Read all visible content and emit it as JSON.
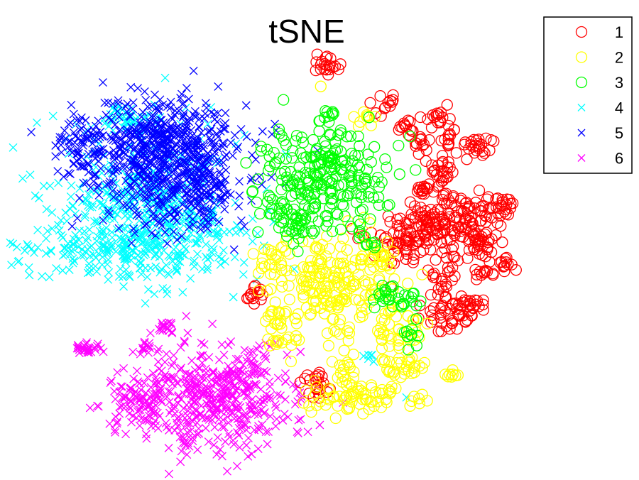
{
  "chart_data": {
    "type": "scatter",
    "title": "tSNE",
    "xlabel": "",
    "ylabel": "",
    "grid": false,
    "axes_visible": false,
    "xlim": [
      0,
      100
    ],
    "ylim": [
      0,
      100
    ],
    "legend": {
      "position": "top-right"
    },
    "series": [
      {
        "name": "1",
        "marker": "circle",
        "color": "#ff0000",
        "clusters": [
          {
            "x": 51.5,
            "y": 86.2,
            "sx": 1.2,
            "sy": 1.2,
            "n": 20
          },
          {
            "x": 60.6,
            "y": 78.6,
            "sx": 1.0,
            "sy": 1.0,
            "n": 12
          },
          {
            "x": 63.3,
            "y": 73.5,
            "sx": 0.9,
            "sy": 1.0,
            "n": 12
          },
          {
            "x": 65.2,
            "y": 70.1,
            "sx": 0.9,
            "sy": 1.0,
            "n": 12
          },
          {
            "x": 68.5,
            "y": 75.1,
            "sx": 1.2,
            "sy": 1.2,
            "n": 18
          },
          {
            "x": 70.0,
            "y": 70.9,
            "sx": 1.0,
            "sy": 1.0,
            "n": 10
          },
          {
            "x": 74.6,
            "y": 69.5,
            "sx": 1.4,
            "sy": 1.4,
            "n": 24
          },
          {
            "x": 68.8,
            "y": 65.1,
            "sx": 1.2,
            "sy": 1.8,
            "n": 24
          },
          {
            "x": 66.4,
            "y": 60.2,
            "sx": 1.2,
            "sy": 1.2,
            "n": 16
          },
          {
            "x": 69.7,
            "y": 58.5,
            "sx": 1.0,
            "sy": 1.2,
            "n": 14
          },
          {
            "x": 64.5,
            "y": 51.0,
            "sx": 3.2,
            "sy": 3.4,
            "n": 110
          },
          {
            "x": 71.5,
            "y": 50.5,
            "sx": 3.2,
            "sy": 3.4,
            "n": 80
          },
          {
            "x": 73.7,
            "y": 55.9,
            "sx": 1.6,
            "sy": 1.8,
            "n": 28
          },
          {
            "x": 78.7,
            "y": 56.9,
            "sx": 1.5,
            "sy": 1.5,
            "n": 26
          },
          {
            "x": 75.4,
            "y": 49.1,
            "sx": 1.2,
            "sy": 1.2,
            "n": 14
          },
          {
            "x": 76.0,
            "y": 43.8,
            "sx": 1.0,
            "sy": 1.0,
            "n": 12
          },
          {
            "x": 79.2,
            "y": 44.6,
            "sx": 1.0,
            "sy": 1.0,
            "n": 12
          },
          {
            "x": 69.1,
            "y": 41.4,
            "sx": 1.2,
            "sy": 1.2,
            "n": 14
          },
          {
            "x": 69.9,
            "y": 35.0,
            "sx": 2.0,
            "sy": 2.0,
            "n": 40
          },
          {
            "x": 73.8,
            "y": 35.9,
            "sx": 1.3,
            "sy": 1.3,
            "n": 22
          },
          {
            "x": 40.0,
            "y": 38.5,
            "sx": 1.0,
            "sy": 1.0,
            "n": 14
          },
          {
            "x": 50.0,
            "y": 20.0,
            "sx": 1.2,
            "sy": 1.6,
            "n": 22
          }
        ]
      },
      {
        "name": "2",
        "marker": "circle",
        "color": "#ffff00",
        "clusters": [
          {
            "x": 50.2,
            "y": 82.0,
            "sx": 0.3,
            "sy": 0.3,
            "n": 1
          },
          {
            "x": 57.0,
            "y": 75.3,
            "sx": 1.0,
            "sy": 1.0,
            "n": 10
          },
          {
            "x": 43.3,
            "y": 45.6,
            "sx": 1.6,
            "sy": 1.6,
            "n": 20
          },
          {
            "x": 52.4,
            "y": 40.2,
            "sx": 4.8,
            "sy": 5.4,
            "n": 200
          },
          {
            "x": 44.0,
            "y": 30.0,
            "sx": 1.5,
            "sy": 1.4,
            "n": 18
          },
          {
            "x": 42.0,
            "y": 34.5,
            "sx": 1.0,
            "sy": 1.0,
            "n": 10
          },
          {
            "x": 61.5,
            "y": 31.5,
            "sx": 2.2,
            "sy": 2.8,
            "n": 40
          },
          {
            "x": 63.0,
            "y": 23.5,
            "sx": 1.5,
            "sy": 1.5,
            "n": 26
          },
          {
            "x": 56.0,
            "y": 17.0,
            "sx": 4.5,
            "sy": 1.6,
            "n": 70
          },
          {
            "x": 54.0,
            "y": 23.0,
            "sx": 1.5,
            "sy": 1.5,
            "n": 14
          },
          {
            "x": 70.8,
            "y": 22.3,
            "sx": 0.8,
            "sy": 0.8,
            "n": 8
          },
          {
            "x": 59.5,
            "y": 46.0,
            "sx": 1.5,
            "sy": 1.5,
            "n": 18
          }
        ]
      },
      {
        "name": "3",
        "marker": "circle",
        "color": "#00ff00",
        "clusters": [
          {
            "x": 51.0,
            "y": 63.5,
            "sx": 5.0,
            "sy": 5.2,
            "n": 230
          },
          {
            "x": 46.5,
            "y": 53.0,
            "sx": 2.5,
            "sy": 2.0,
            "n": 40
          },
          {
            "x": 42.5,
            "y": 57.0,
            "sx": 1.2,
            "sy": 1.2,
            "n": 10
          },
          {
            "x": 51.0,
            "y": 76.3,
            "sx": 1.0,
            "sy": 1.0,
            "n": 10
          },
          {
            "x": 57.5,
            "y": 49.5,
            "sx": 1.0,
            "sy": 1.0,
            "n": 8
          },
          {
            "x": 61.0,
            "y": 38.2,
            "sx": 1.6,
            "sy": 1.4,
            "n": 22
          },
          {
            "x": 64.2,
            "y": 37.3,
            "sx": 1.0,
            "sy": 1.2,
            "n": 10
          },
          {
            "x": 64.0,
            "y": 30.0,
            "sx": 0.5,
            "sy": 1.4,
            "n": 10
          }
        ]
      },
      {
        "name": "4",
        "marker": "cross",
        "color": "#00ffff",
        "clusters": [
          {
            "x": 21.5,
            "y": 58.0,
            "sx": 7.5,
            "sy": 8.0,
            "n": 420
          },
          {
            "x": 18.0,
            "y": 47.0,
            "sx": 8.0,
            "sy": 2.5,
            "n": 160
          },
          {
            "x": 30.0,
            "y": 52.0,
            "sx": 5.0,
            "sy": 2.5,
            "n": 90
          },
          {
            "x": 20.0,
            "y": 75.0,
            "sx": 2.0,
            "sy": 1.5,
            "n": 40
          },
          {
            "x": 58.2,
            "y": 26.0,
            "sx": 0.4,
            "sy": 0.5,
            "n": 6
          },
          {
            "x": 63.6,
            "y": 17.2,
            "sx": 0.3,
            "sy": 0.3,
            "n": 1
          }
        ]
      },
      {
        "name": "5",
        "marker": "cross",
        "color": "#0000ff",
        "clusters": [
          {
            "x": 24.5,
            "y": 66.5,
            "sx": 6.8,
            "sy": 6.5,
            "n": 560
          },
          {
            "x": 12.5,
            "y": 70.0,
            "sx": 2.0,
            "sy": 3.5,
            "n": 50
          },
          {
            "x": 27.0,
            "y": 72.0,
            "sx": 4.0,
            "sy": 3.0,
            "n": 120
          },
          {
            "x": 30.0,
            "y": 60.0,
            "sx": 3.5,
            "sy": 4.5,
            "n": 110
          }
        ]
      },
      {
        "name": "6",
        "marker": "cross",
        "color": "#ff00ff",
        "clusters": [
          {
            "x": 33.0,
            "y": 16.5,
            "sx": 6.5,
            "sy": 5.5,
            "n": 450
          },
          {
            "x": 22.0,
            "y": 16.5,
            "sx": 3.0,
            "sy": 3.5,
            "n": 80
          },
          {
            "x": 13.5,
            "y": 27.2,
            "sx": 1.2,
            "sy": 0.8,
            "n": 26
          },
          {
            "x": 25.8,
            "y": 31.8,
            "sx": 1.0,
            "sy": 0.8,
            "n": 18
          },
          {
            "x": 22.5,
            "y": 27.5,
            "sx": 1.0,
            "sy": 0.6,
            "n": 14
          },
          {
            "x": 40.0,
            "y": 25.0,
            "sx": 1.5,
            "sy": 1.5,
            "n": 20
          }
        ]
      }
    ]
  }
}
